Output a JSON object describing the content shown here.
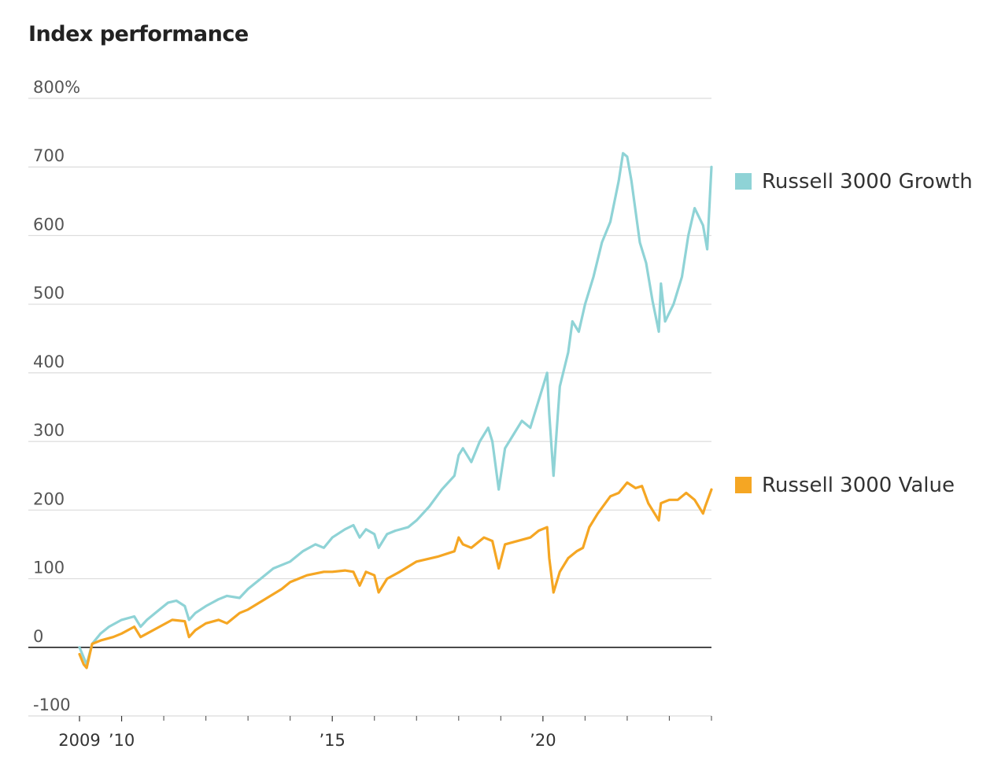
{
  "chart_data": {
    "type": "line",
    "title": "Index performance",
    "y_unit_suffix": "%",
    "ylim": [
      -100,
      800
    ],
    "yticks": [
      {
        "value": 800,
        "label": "800%"
      },
      {
        "value": 700,
        "label": "700"
      },
      {
        "value": 600,
        "label": "600"
      },
      {
        "value": 500,
        "label": "500"
      },
      {
        "value": 400,
        "label": "400"
      },
      {
        "value": 300,
        "label": "300"
      },
      {
        "value": 200,
        "label": "200"
      },
      {
        "value": 100,
        "label": "100"
      },
      {
        "value": 0,
        "label": "0"
      },
      {
        "value": -100,
        "label": "-100"
      }
    ],
    "xlim": [
      2009.0,
      2024.0
    ],
    "xticks": [
      {
        "value": 2009.0,
        "label": "2009"
      },
      {
        "value": 2010.0,
        "label": "’10"
      },
      {
        "value": 2015.0,
        "label": "’15"
      },
      {
        "value": 2020.0,
        "label": "’20"
      }
    ],
    "xminor": [
      2011,
      2012,
      2013,
      2014,
      2016,
      2017,
      2018,
      2019,
      2021,
      2022,
      2023,
      2024
    ],
    "grid": true,
    "legend_position": "right",
    "series": [
      {
        "name": "Russell 3000 Growth",
        "color": "#8fd3d6",
        "x": [
          2009.0,
          2009.1,
          2009.17,
          2009.3,
          2009.5,
          2009.7,
          2010.0,
          2010.3,
          2010.45,
          2010.6,
          2010.9,
          2011.1,
          2011.3,
          2011.5,
          2011.6,
          2011.75,
          2012.0,
          2012.3,
          2012.5,
          2012.8,
          2013.0,
          2013.3,
          2013.6,
          2014.0,
          2014.3,
          2014.6,
          2014.8,
          2015.0,
          2015.3,
          2015.5,
          2015.65,
          2015.8,
          2016.0,
          2016.1,
          2016.3,
          2016.5,
          2016.8,
          2017.0,
          2017.3,
          2017.6,
          2017.9,
          2018.0,
          2018.1,
          2018.3,
          2018.5,
          2018.7,
          2018.8,
          2018.95,
          2019.1,
          2019.3,
          2019.5,
          2019.7,
          2019.9,
          2020.1,
          2020.15,
          2020.25,
          2020.4,
          2020.6,
          2020.7,
          2020.85,
          2021.0,
          2021.2,
          2021.4,
          2021.6,
          2021.8,
          2021.9,
          2022.0,
          2022.1,
          2022.3,
          2022.45,
          2022.6,
          2022.75,
          2022.8,
          2022.9,
          2023.1,
          2023.3,
          2023.45,
          2023.6,
          2023.8,
          2023.9,
          2024.0
        ],
        "values": [
          0,
          -15,
          -25,
          5,
          20,
          30,
          40,
          45,
          30,
          40,
          55,
          65,
          68,
          60,
          40,
          50,
          60,
          70,
          75,
          72,
          85,
          100,
          115,
          125,
          140,
          150,
          145,
          160,
          172,
          178,
          160,
          172,
          165,
          145,
          165,
          170,
          175,
          185,
          205,
          230,
          250,
          280,
          290,
          270,
          300,
          320,
          300,
          230,
          290,
          310,
          330,
          320,
          360,
          400,
          340,
          250,
          380,
          430,
          475,
          460,
          500,
          540,
          590,
          620,
          680,
          720,
          715,
          680,
          590,
          560,
          505,
          460,
          530,
          475,
          500,
          540,
          600,
          640,
          615,
          580,
          700
        ]
      },
      {
        "name": "Russell 3000 Value",
        "color": "#f5a623",
        "x": [
          2009.0,
          2009.1,
          2009.17,
          2009.3,
          2009.5,
          2009.8,
          2010.0,
          2010.3,
          2010.45,
          2010.6,
          2010.9,
          2011.2,
          2011.5,
          2011.6,
          2011.75,
          2012.0,
          2012.3,
          2012.5,
          2012.8,
          2013.0,
          2013.4,
          2013.8,
          2014.0,
          2014.4,
          2014.8,
          2015.0,
          2015.3,
          2015.5,
          2015.65,
          2015.8,
          2016.0,
          2016.1,
          2016.3,
          2016.6,
          2017.0,
          2017.5,
          2017.9,
          2018.0,
          2018.1,
          2018.3,
          2018.6,
          2018.8,
          2018.95,
          2019.1,
          2019.4,
          2019.7,
          2019.9,
          2020.1,
          2020.15,
          2020.25,
          2020.4,
          2020.6,
          2020.8,
          2020.95,
          2021.1,
          2021.3,
          2021.6,
          2021.8,
          2022.0,
          2022.2,
          2022.35,
          2022.5,
          2022.75,
          2022.8,
          2023.0,
          2023.2,
          2023.4,
          2023.6,
          2023.8,
          2023.85,
          2024.0
        ],
        "values": [
          -10,
          -25,
          -30,
          5,
          10,
          15,
          20,
          30,
          15,
          20,
          30,
          40,
          38,
          15,
          25,
          35,
          40,
          35,
          50,
          55,
          70,
          85,
          95,
          105,
          110,
          110,
          112,
          110,
          90,
          110,
          105,
          80,
          100,
          110,
          125,
          132,
          140,
          160,
          150,
          145,
          160,
          155,
          115,
          150,
          155,
          160,
          170,
          175,
          130,
          80,
          110,
          130,
          140,
          145,
          175,
          195,
          220,
          225,
          240,
          232,
          235,
          210,
          185,
          210,
          215,
          215,
          225,
          215,
          195,
          205,
          230
        ]
      }
    ]
  }
}
